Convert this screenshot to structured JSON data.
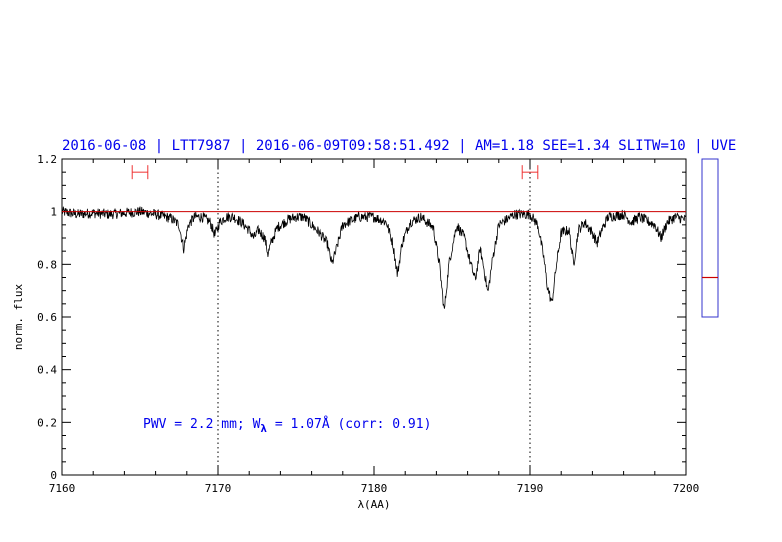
{
  "header": {
    "title": "2016-06-08 | LTT7987 | 2016-06-09T09:58:51.492 | AM=1.18 SEE=1.34 SLITW=10 | UVE"
  },
  "annotation": {
    "prefix": "PWV = 2.2 mm; W",
    "subscript": "λ",
    "suffix": " = 1.07Å (corr: 0.91)"
  },
  "colors": {
    "title": "#0000ee",
    "spectrum": "#000000",
    "continuum": "#cc0000",
    "markers": "#ee3333",
    "sidebar_frame": "#3333cc",
    "sidebar_level": "#cc0000",
    "dotted_lines": "#000000"
  },
  "chart_data": {
    "type": "line",
    "title": "",
    "xlabel": "λ(AA)",
    "ylabel": "norm. flux",
    "xlim": [
      7160,
      7200
    ],
    "ylim": [
      0,
      1.2
    ],
    "x_ticks": [
      7160,
      7170,
      7180,
      7190,
      7200
    ],
    "x_tick_labels": [
      "7160",
      "7170",
      "7180",
      "7190",
      "7200"
    ],
    "y_ticks": [
      0,
      0.2,
      0.4,
      0.6,
      0.8,
      1,
      1.2
    ],
    "y_tick_labels": [
      "0",
      "0.2",
      "0.4",
      "0.6",
      "0.8",
      "1",
      "1.2"
    ],
    "continuum_level": 1.0,
    "reference_lines_x": [
      7170,
      7190
    ],
    "fit_regions": [
      {
        "x_start": 7164.5,
        "x_end": 7165.5,
        "y": 1.15
      },
      {
        "x_start": 7189.5,
        "x_end": 7190.5,
        "y": 1.15
      }
    ],
    "noise_amplitude": 0.02,
    "series": [
      {
        "values": [
          [
            7160,
            1.0
          ],
          [
            7161,
            0.99
          ],
          [
            7162,
            0.995
          ],
          [
            7163,
            0.99
          ],
          [
            7164,
            0.995
          ],
          [
            7165,
            1.0
          ],
          [
            7166,
            0.99
          ],
          [
            7167,
            0.975
          ],
          [
            7167.5,
            0.95
          ],
          [
            7167.8,
            0.86
          ],
          [
            7168.1,
            0.95
          ],
          [
            7168.5,
            0.98
          ],
          [
            7169,
            0.98
          ],
          [
            7169.5,
            0.96
          ],
          [
            7169.8,
            0.91
          ],
          [
            7170.1,
            0.96
          ],
          [
            7170.5,
            0.98
          ],
          [
            7171,
            0.98
          ],
          [
            7171.5,
            0.96
          ],
          [
            7172,
            0.93
          ],
          [
            7172.3,
            0.9
          ],
          [
            7172.6,
            0.93
          ],
          [
            7173,
            0.9
          ],
          [
            7173.2,
            0.84
          ],
          [
            7173.4,
            0.88
          ],
          [
            7173.8,
            0.94
          ],
          [
            7174.5,
            0.97
          ],
          [
            7175,
            0.98
          ],
          [
            7175.5,
            0.98
          ],
          [
            7176,
            0.95
          ],
          [
            7176.5,
            0.92
          ],
          [
            7177,
            0.88
          ],
          [
            7177.3,
            0.8
          ],
          [
            7177.6,
            0.86
          ],
          [
            7178,
            0.95
          ],
          [
            7179,
            0.98
          ],
          [
            7180,
            0.98
          ],
          [
            7180.8,
            0.96
          ],
          [
            7181.2,
            0.88
          ],
          [
            7181.5,
            0.76
          ],
          [
            7181.8,
            0.88
          ],
          [
            7182.3,
            0.96
          ],
          [
            7183,
            0.98
          ],
          [
            7183.8,
            0.94
          ],
          [
            7184.2,
            0.8
          ],
          [
            7184.5,
            0.62
          ],
          [
            7184.8,
            0.8
          ],
          [
            7185.3,
            0.95
          ],
          [
            7185.8,
            0.9
          ],
          [
            7186.2,
            0.8
          ],
          [
            7186.5,
            0.74
          ],
          [
            7186.8,
            0.86
          ],
          [
            7187,
            0.8
          ],
          [
            7187.3,
            0.69
          ],
          [
            7187.6,
            0.82
          ],
          [
            7188,
            0.95
          ],
          [
            7189,
            0.99
          ],
          [
            7190,
            0.99
          ],
          [
            7190.5,
            0.95
          ],
          [
            7190.9,
            0.82
          ],
          [
            7191.1,
            0.72
          ],
          [
            7191.4,
            0.65
          ],
          [
            7191.7,
            0.8
          ],
          [
            7192,
            0.92
          ],
          [
            7192.5,
            0.93
          ],
          [
            7192.8,
            0.8
          ],
          [
            7193.1,
            0.93
          ],
          [
            7193.5,
            0.96
          ],
          [
            7194,
            0.92
          ],
          [
            7194.3,
            0.88
          ],
          [
            7194.6,
            0.93
          ],
          [
            7195,
            0.98
          ],
          [
            7196,
            0.99
          ],
          [
            7196.5,
            0.96
          ],
          [
            7197,
            0.98
          ],
          [
            7198,
            0.95
          ],
          [
            7198.4,
            0.9
          ],
          [
            7198.8,
            0.96
          ],
          [
            7199.3,
            0.98
          ],
          [
            7200,
            0.97
          ]
        ]
      }
    ],
    "sidebar_gauge": {
      "range": [
        0,
        1
      ],
      "level": 0.25
    }
  }
}
